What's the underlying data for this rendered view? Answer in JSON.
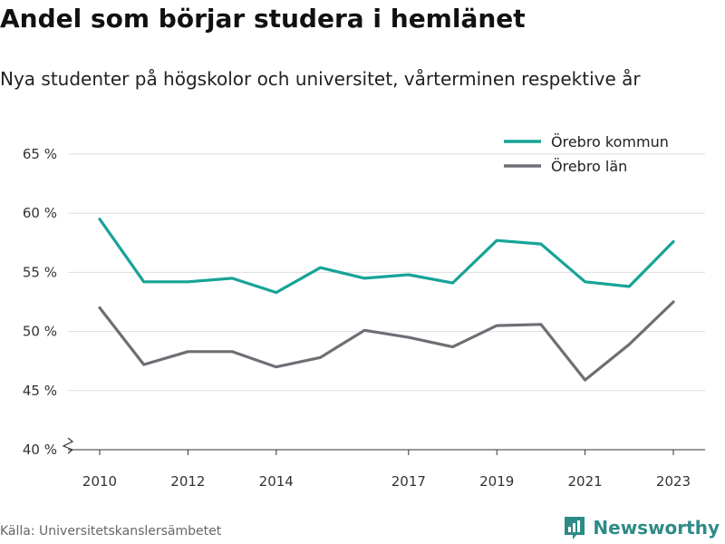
{
  "header": {
    "title": "Andel som börjar studera i hemlänet",
    "subtitle": "Nya studenter på högskolor och universitet, vårterminen respektive år"
  },
  "footer": {
    "source": "Källa: Universitetskanslersämbetet",
    "brand": "Newsworthy"
  },
  "chart_data": {
    "type": "line",
    "title": "Andel som börjar studera i hemlänet",
    "subtitle": "Nya studenter på högskolor och universitet, vårterminen respektive år",
    "x": [
      2010,
      2011,
      2012,
      2013,
      2014,
      2015,
      2016,
      2017,
      2018,
      2019,
      2020,
      2021,
      2022,
      2023
    ],
    "x_tick_labels": [
      "2010",
      "2012",
      "2014",
      "2017",
      "2019",
      "2021",
      "2023"
    ],
    "x_ticks": [
      2010,
      2012,
      2014,
      2017,
      2019,
      2021,
      2023
    ],
    "ylim": [
      40,
      65
    ],
    "y_ticks": [
      40,
      45,
      50,
      55,
      60,
      65
    ],
    "y_tick_labels": [
      "40 %",
      "45 %",
      "50 %",
      "55 %",
      "60 %",
      "65 %"
    ],
    "y_axis_break": true,
    "grid": true,
    "legend_position": "top-right",
    "series": [
      {
        "name": "Örebro kommun",
        "color": "#17a397",
        "values": [
          59.5,
          54.2,
          54.2,
          54.5,
          53.3,
          55.4,
          54.5,
          54.8,
          54.1,
          57.7,
          57.4,
          54.2,
          53.8,
          57.6
        ]
      },
      {
        "name": "Örebro län",
        "color": "#6f6e75",
        "values": [
          52.0,
          47.2,
          48.3,
          48.3,
          47.0,
          47.8,
          50.1,
          49.5,
          48.7,
          50.5,
          50.6,
          45.9,
          48.9,
          52.5
        ]
      }
    ]
  }
}
